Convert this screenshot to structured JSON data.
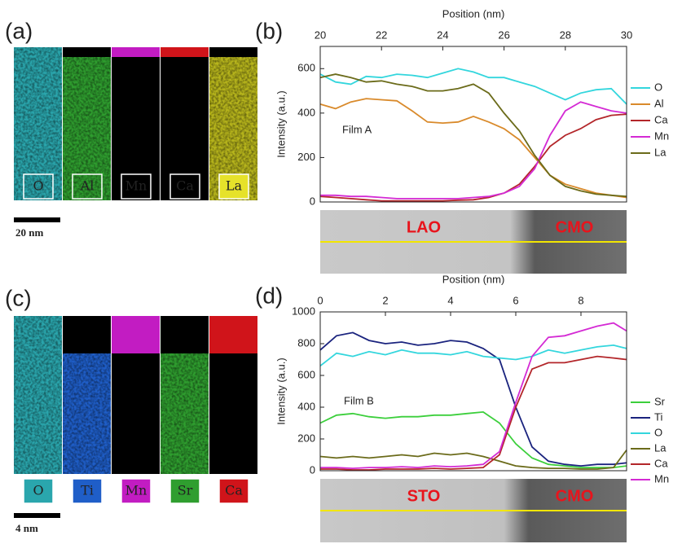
{
  "maps": [
    {
      "panel_label": "(a)",
      "elements": [
        "O",
        "Al",
        "Mn",
        "Ca",
        "La"
      ],
      "scale_bar": "20 nm"
    },
    {
      "panel_label": "(c)",
      "elements": [
        "O",
        "Ti",
        "Mn",
        "Sr",
        "Ca"
      ],
      "scale_bar": "4 nm"
    }
  ],
  "chart_data": [
    {
      "type": "line",
      "panel_label": "(b)",
      "x_label": "Position (nm)",
      "y_label": "Intensity (a.u.)",
      "annotation": "Film A",
      "image_labels": [
        "LAO",
        "CMO"
      ],
      "x": [
        20,
        20.5,
        21,
        21.5,
        22,
        22.5,
        23,
        23.5,
        24,
        24.5,
        25,
        25.5,
        26,
        26.5,
        27,
        27.5,
        28,
        28.5,
        29,
        29.5,
        30
      ],
      "xlim": [
        20,
        30
      ],
      "xticks": [
        20,
        22,
        24,
        26,
        28,
        30
      ],
      "ylim": [
        0,
        700
      ],
      "yticks": [
        0,
        200,
        400,
        600
      ],
      "series": [
        {
          "name": "O",
          "color": "#33d6dd",
          "values": [
            575,
            540,
            530,
            565,
            560,
            575,
            570,
            560,
            580,
            600,
            585,
            560,
            560,
            540,
            520,
            490,
            460,
            490,
            505,
            510,
            440
          ]
        },
        {
          "name": "Al",
          "color": "#d98a2b",
          "values": [
            440,
            420,
            450,
            465,
            460,
            455,
            410,
            360,
            355,
            360,
            385,
            360,
            330,
            280,
            200,
            120,
            80,
            60,
            40,
            30,
            20
          ]
        },
        {
          "name": "Ca",
          "color": "#b3262a",
          "values": [
            25,
            20,
            15,
            10,
            5,
            5,
            5,
            5,
            5,
            8,
            10,
            20,
            40,
            80,
            160,
            250,
            300,
            330,
            370,
            390,
            395
          ]
        },
        {
          "name": "Mn",
          "color": "#d42ad4",
          "values": [
            30,
            30,
            25,
            25,
            20,
            15,
            15,
            15,
            15,
            15,
            20,
            25,
            40,
            70,
            150,
            300,
            410,
            450,
            430,
            410,
            400
          ]
        },
        {
          "name": "La",
          "color": "#6b6b1a",
          "values": [
            560,
            575,
            560,
            540,
            545,
            530,
            520,
            500,
            500,
            510,
            530,
            490,
            400,
            320,
            210,
            120,
            70,
            50,
            35,
            30,
            25
          ]
        }
      ]
    },
    {
      "type": "line",
      "panel_label": "(d)",
      "x_label": "Position (nm)",
      "y_label": "Intensity (a.u.)",
      "annotation": "Film B",
      "image_labels": [
        "STO",
        "CMO"
      ],
      "x": [
        0,
        0.5,
        1,
        1.5,
        2,
        2.5,
        3,
        3.5,
        4,
        4.5,
        5,
        5.5,
        6,
        6.5,
        7,
        7.5,
        8,
        8.5,
        9,
        9.4
      ],
      "xlim": [
        0,
        9.4
      ],
      "xticks": [
        0,
        2,
        4,
        6,
        8
      ],
      "ylim": [
        0,
        1000
      ],
      "yticks": [
        0,
        200,
        400,
        600,
        800,
        1000
      ],
      "series": [
        {
          "name": "Sr",
          "color": "#3ccf3c",
          "values": [
            300,
            350,
            360,
            340,
            330,
            340,
            340,
            350,
            350,
            360,
            370,
            300,
            170,
            80,
            40,
            30,
            20,
            20,
            20,
            30
          ]
        },
        {
          "name": "Ti",
          "color": "#1a237e",
          "values": [
            760,
            850,
            870,
            820,
            800,
            810,
            790,
            800,
            820,
            810,
            770,
            700,
            400,
            150,
            60,
            40,
            30,
            40,
            40,
            50
          ]
        },
        {
          "name": "O",
          "color": "#33d6dd",
          "values": [
            660,
            740,
            720,
            750,
            730,
            760,
            740,
            740,
            730,
            750,
            720,
            710,
            700,
            720,
            760,
            740,
            760,
            780,
            790,
            770
          ]
        },
        {
          "name": "La",
          "color": "#6b6b1a",
          "values": [
            90,
            80,
            90,
            80,
            90,
            100,
            90,
            110,
            100,
            110,
            90,
            60,
            30,
            20,
            15,
            15,
            10,
            10,
            20,
            130
          ]
        },
        {
          "name": "Ca",
          "color": "#b3262a",
          "values": [
            10,
            10,
            5,
            5,
            10,
            10,
            10,
            15,
            10,
            15,
            20,
            100,
            400,
            640,
            680,
            680,
            700,
            720,
            710,
            700
          ]
        },
        {
          "name": "Mn",
          "color": "#d42ad4",
          "values": [
            20,
            20,
            15,
            20,
            20,
            25,
            20,
            30,
            25,
            30,
            40,
            120,
            430,
            720,
            840,
            850,
            880,
            910,
            930,
            880
          ]
        }
      ]
    }
  ]
}
